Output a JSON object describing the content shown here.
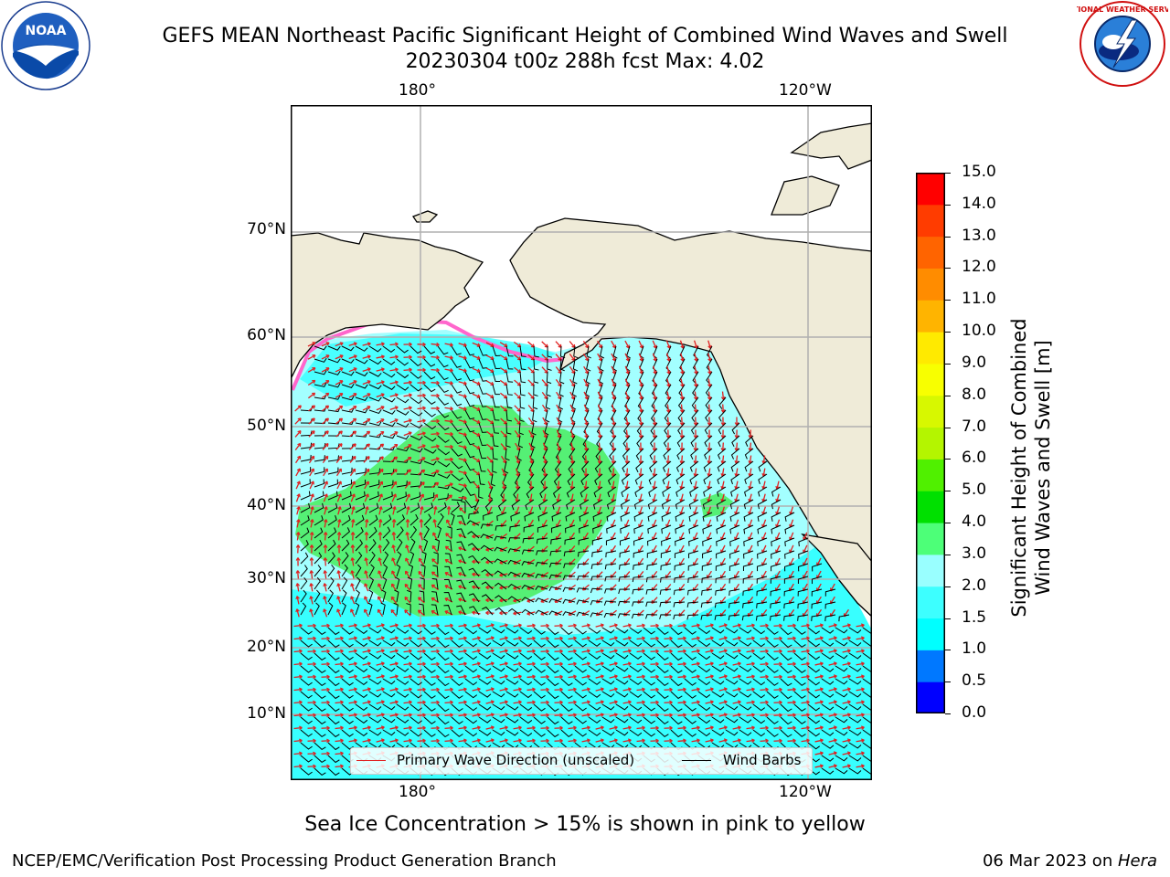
{
  "header": {
    "title_line1": "GEFS MEAN Northeast Pacific Significant Height of Combined Wind Waves and Swell",
    "title_line2": "20230304 t00z 288h fcst   Max: 4.02"
  },
  "logos": {
    "left": "NOAA",
    "right": "NATIONAL WEATHER SERVICE"
  },
  "map": {
    "lon_ticks_top": [
      "180°",
      "120°W"
    ],
    "lon_ticks_bottom": [
      "180°",
      "120°W"
    ],
    "lat_ticks": [
      "70°N",
      "60°N",
      "50°N",
      "40°N",
      "30°N",
      "20°N",
      "10°N"
    ],
    "legend": {
      "wave_label": "Primary Wave Direction (unscaled)",
      "wind_label": "Wind Barbs"
    },
    "colors": {
      "land": "#efebd8",
      "ocean_low": "#33ffff",
      "ocean_mid": "#a3ffff",
      "ocean_high": "#55f075",
      "ice": "#ff66cc",
      "wave_arrow": "#e02020",
      "barb": "#000000"
    }
  },
  "colorbar": {
    "label_line1": "Significant Height of Combined",
    "label_line2": "Wind Waves and Swell [m]",
    "ticks": [
      "15.0",
      "14.0",
      "13.0",
      "12.0",
      "11.0",
      "10.0",
      "9.0",
      "8.0",
      "7.0",
      "6.0",
      "5.0",
      "4.0",
      "3.0",
      "2.0",
      "1.5",
      "1.0",
      "0.5",
      "0.0"
    ],
    "colors": [
      "#0000ff",
      "#0078ff",
      "#00ffff",
      "#3dffff",
      "#99ffff",
      "#4dff78",
      "#00e000",
      "#50f000",
      "#b4f500",
      "#d7f800",
      "#f8ff00",
      "#ffea00",
      "#ffb400",
      "#ff8c00",
      "#ff6400",
      "#ff3c00",
      "#ff0000"
    ]
  },
  "note": "Sea Ice Concentration > 15% is shown in pink to yellow",
  "footer": {
    "left": "NCEP/EMC/Verification Post Processing Product Generation Branch",
    "right_date": "06 Mar 2023 on ",
    "right_host": "Hera"
  }
}
